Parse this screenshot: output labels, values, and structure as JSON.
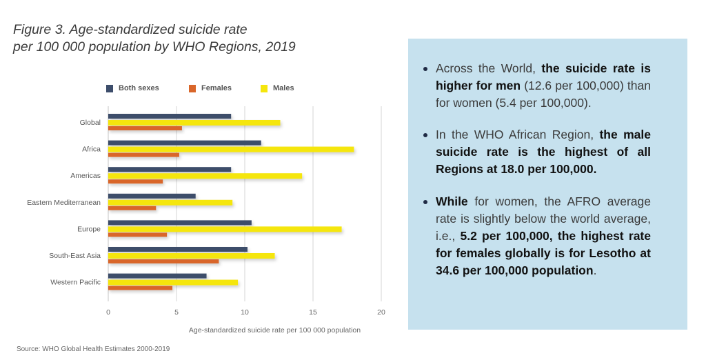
{
  "figure_title_line1": "Figure 3.  Age-standardized suicide rate",
  "figure_title_line2": "per 100 000 population by WHO Regions, 2019",
  "source": "Source: WHO Global Health Estimates 2000-2019",
  "colors": {
    "both": "#3d4d6b",
    "females": "#d9662a",
    "males": "#f5e60d",
    "box": "#c6e1ee"
  },
  "chart_data": {
    "type": "bar",
    "orientation": "horizontal",
    "title": "Figure 3. Age-standardized suicide rate per 100 000 population by WHO Regions, 2019",
    "xlabel": "Age-standardized suicide rate per 100 000 population",
    "ylabel": "",
    "xlim": [
      0,
      20
    ],
    "xticks": [
      "0",
      "5",
      "10",
      "15",
      "20"
    ],
    "xtick_values": [
      0,
      5,
      10,
      15,
      20
    ],
    "grid": true,
    "legend_position": "top",
    "categories": [
      "Global",
      "Africa",
      "Americas",
      "Eastern Mediterranean",
      "Europe",
      "South-East Asia",
      "Western Pacific"
    ],
    "series": [
      {
        "name": "Both sexes",
        "key": "both",
        "values": [
          9.0,
          11.2,
          9.0,
          6.4,
          10.5,
          10.2,
          7.2
        ]
      },
      {
        "name": "Males",
        "key": "males",
        "values": [
          12.6,
          18.0,
          14.2,
          9.1,
          17.1,
          12.2,
          9.5
        ]
      },
      {
        "name": "Females",
        "key": "females",
        "values": [
          5.4,
          5.2,
          4.0,
          3.5,
          4.3,
          8.1,
          4.7
        ]
      }
    ],
    "legend": [
      "Both sexes",
      "Females",
      "Males"
    ]
  },
  "info": {
    "b1_normal1": "Across the World, ",
    "b1_bold1": "the suicide rate is higher for men",
    "b1_normal2": " (12.6 per 100,000) than for women (5.4 per 100,000).",
    "b2_normal1": "In the WHO African Region, ",
    "b2_bold1": "the male suicide rate is the highest of all Regions at 18.0 per 100,000.",
    "b3_bold1": "While",
    "b3_normal1": " for women, the AFRO average rate is slightly below the world average, i.e., ",
    "b3_bold2": "5.2 per 100,000, the highest rate for females globally is for Lesotho at 34.6 per 100,000 population",
    "b3_normal2": "."
  }
}
